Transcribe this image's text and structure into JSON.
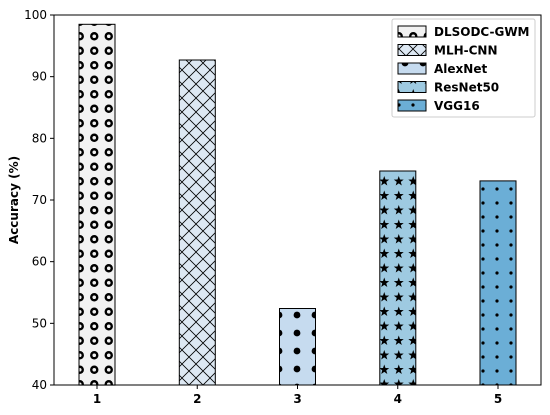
{
  "chart_data": {
    "type": "bar",
    "categories": [
      "1",
      "2",
      "3",
      "4",
      "5"
    ],
    "values": [
      98.5,
      92.7,
      52.4,
      74.7,
      73.1
    ],
    "series_names": [
      "DLSODC-GWM",
      "MLH-CNN",
      "AlexNet",
      "ResNet50",
      "VGG16"
    ],
    "bar_fill_colors": [
      "#f2f2f2",
      "#dde8f3",
      "#c6dbef",
      "#9ecae1",
      "#6baed6"
    ],
    "bar_patterns": [
      "rings",
      "crosshatch",
      "dots",
      "stars",
      "small-dots"
    ],
    "ylabel": "Accuracy (%)",
    "xlabel": "",
    "ylim": [
      40,
      100
    ],
    "yticks": [
      40,
      50,
      60,
      70,
      80,
      90,
      100
    ],
    "grid": false,
    "legend_position": "top-right"
  }
}
